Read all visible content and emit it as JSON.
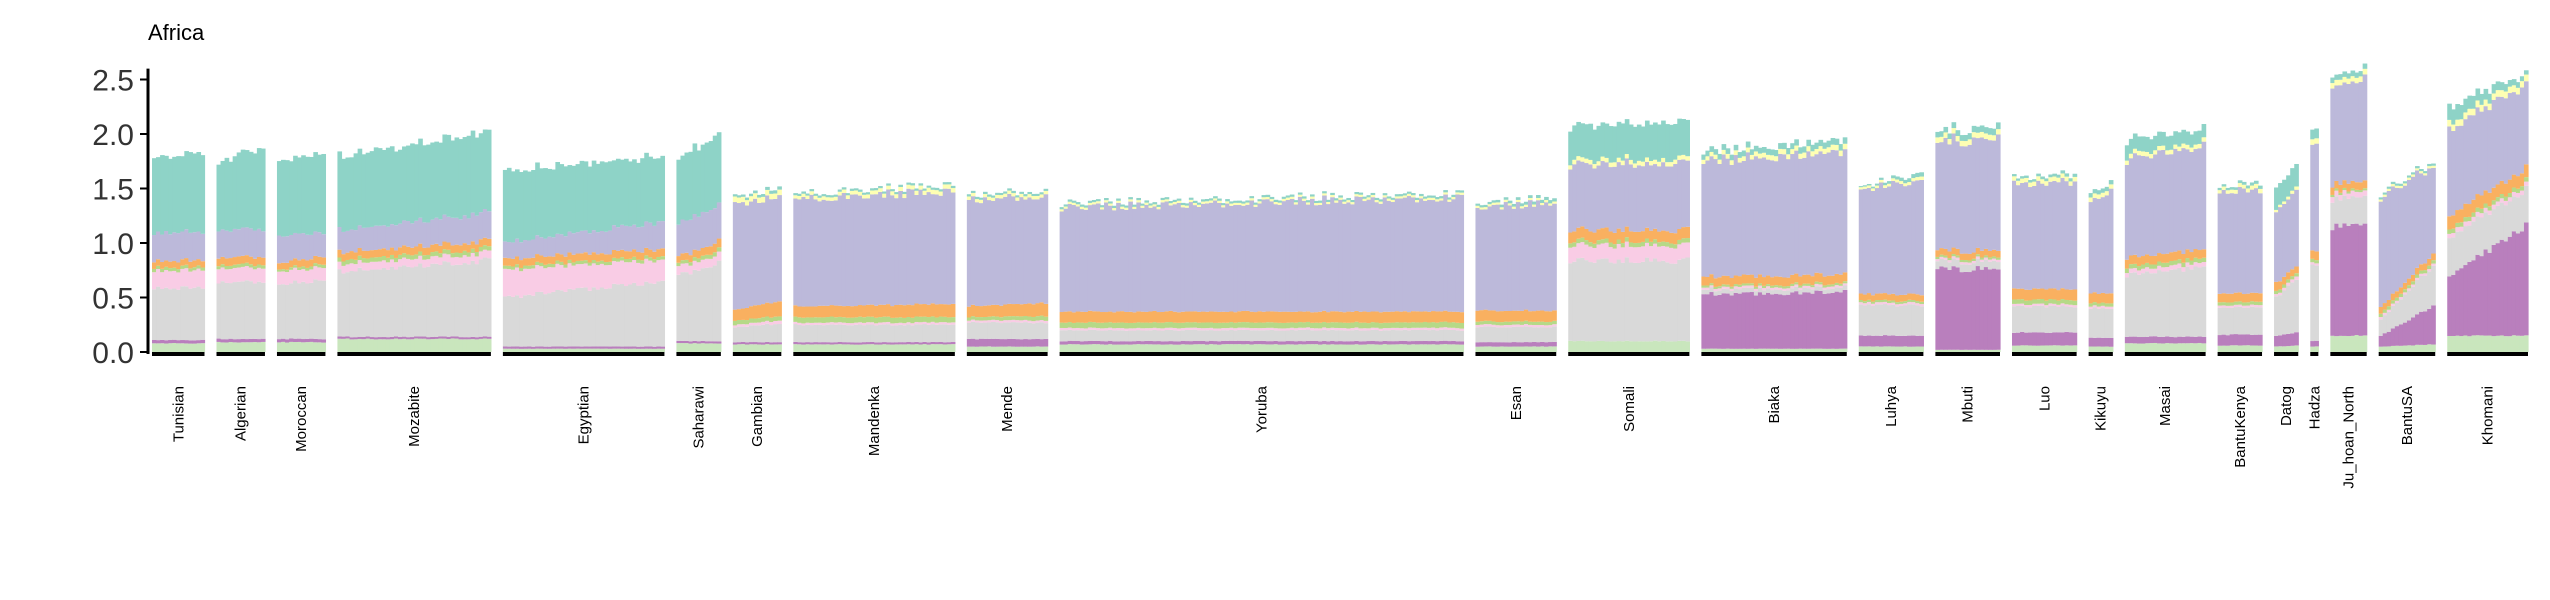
{
  "chart_data": {
    "type": "bar",
    "stacked": true,
    "title": "Africa",
    "xlabel": "",
    "ylabel": "",
    "ylim": [
      0,
      2.6
    ],
    "yticks": [
      "0.0",
      "0.5",
      "1.0",
      "1.5",
      "2.0",
      "2.5"
    ],
    "grid": false,
    "legend": "none",
    "component_colors": [
      "#c9e6bd",
      "#b97fbd",
      "#d9d9d9",
      "#f9cce5",
      "#b6d987",
      "#f9b060",
      "#bcb9da",
      "#feffb3",
      "#8ed3c7"
    ],
    "groups": [
      {
        "label": "Tunisian",
        "n": 13,
        "start": [
          0.08,
          0.03,
          0.48,
          0.16,
          0.03,
          0.06,
          0.26,
          0.0,
          0.7
        ],
        "end": [
          0.08,
          0.03,
          0.48,
          0.16,
          0.03,
          0.06,
          0.26,
          0.0,
          0.72
        ]
      },
      {
        "label": "Algerian",
        "n": 12,
        "start": [
          0.09,
          0.03,
          0.52,
          0.13,
          0.03,
          0.07,
          0.25,
          0.0,
          0.62
        ],
        "end": [
          0.09,
          0.03,
          0.52,
          0.13,
          0.03,
          0.07,
          0.25,
          0.0,
          0.76
        ]
      },
      {
        "label": "Moroccan",
        "n": 12,
        "start": [
          0.09,
          0.03,
          0.5,
          0.12,
          0.02,
          0.06,
          0.25,
          0.0,
          0.68
        ],
        "end": [
          0.09,
          0.03,
          0.54,
          0.12,
          0.03,
          0.07,
          0.22,
          0.0,
          0.74
        ]
      },
      {
        "label": "Mozabite",
        "n": 38,
        "start": [
          0.12,
          0.02,
          0.6,
          0.07,
          0.04,
          0.07,
          0.2,
          0.0,
          0.68
        ],
        "end": [
          0.12,
          0.02,
          0.7,
          0.07,
          0.04,
          0.07,
          0.26,
          0.0,
          0.74
        ]
      },
      {
        "label": "Egyptian",
        "n": 40,
        "start": [
          0.03,
          0.02,
          0.45,
          0.25,
          0.03,
          0.07,
          0.15,
          0.0,
          0.66
        ],
        "end": [
          0.03,
          0.02,
          0.6,
          0.2,
          0.03,
          0.07,
          0.25,
          0.0,
          0.6
        ]
      },
      {
        "label": "Saharawi",
        "n": 11,
        "start": [
          0.08,
          0.02,
          0.6,
          0.08,
          0.03,
          0.06,
          0.3,
          0.0,
          0.6
        ],
        "end": [
          0.08,
          0.02,
          0.72,
          0.08,
          0.04,
          0.08,
          0.34,
          0.0,
          0.66
        ]
      },
      {
        "label": "Gambian",
        "n": 12,
        "start": [
          0.07,
          0.02,
          0.14,
          0.02,
          0.04,
          0.1,
          0.95,
          0.05,
          0.02
        ],
        "end": [
          0.07,
          0.02,
          0.17,
          0.03,
          0.04,
          0.14,
          0.98,
          0.05,
          0.03
        ]
      },
      {
        "label": "Mandenka",
        "n": 40,
        "start": [
          0.07,
          0.02,
          0.16,
          0.02,
          0.05,
          0.1,
          0.98,
          0.03,
          0.02
        ],
        "end": [
          0.07,
          0.02,
          0.16,
          0.02,
          0.05,
          0.12,
          1.04,
          0.04,
          0.02
        ]
      },
      {
        "label": "Mende",
        "n": 20,
        "start": [
          0.05,
          0.07,
          0.15,
          0.02,
          0.03,
          0.1,
          0.98,
          0.03,
          0.02
        ],
        "end": [
          0.05,
          0.07,
          0.15,
          0.02,
          0.04,
          0.12,
          0.99,
          0.03,
          0.02
        ]
      },
      {
        "label": "Yoruba",
        "n": 100,
        "start": [
          0.07,
          0.03,
          0.1,
          0.02,
          0.05,
          0.1,
          0.96,
          0.02,
          0.02
        ],
        "end": [
          0.07,
          0.03,
          0.1,
          0.02,
          0.05,
          0.1,
          1.05,
          0.02,
          0.02
        ]
      },
      {
        "label": "Esan",
        "n": 20,
        "start": [
          0.05,
          0.04,
          0.14,
          0.02,
          0.03,
          0.1,
          0.94,
          0.02,
          0.02
        ],
        "end": [
          0.05,
          0.04,
          0.14,
          0.02,
          0.03,
          0.1,
          1.0,
          0.02,
          0.03
        ]
      },
      {
        "label": "Somali",
        "n": 30,
        "start": [
          0.1,
          0.0,
          0.74,
          0.14,
          0.04,
          0.1,
          0.6,
          0.04,
          0.32
        ],
        "end": [
          0.1,
          0.0,
          0.74,
          0.14,
          0.04,
          0.1,
          0.62,
          0.04,
          0.34
        ]
      },
      {
        "label": "Biaka",
        "n": 36,
        "start": [
          0.03,
          0.5,
          0.04,
          0.02,
          0.02,
          0.08,
          1.06,
          0.04,
          0.05
        ],
        "end": [
          0.03,
          0.52,
          0.04,
          0.02,
          0.02,
          0.08,
          1.13,
          0.05,
          0.06
        ]
      },
      {
        "label": "Luhya",
        "n": 16,
        "start": [
          0.05,
          0.1,
          0.28,
          0.02,
          0.02,
          0.06,
          0.98,
          0.02,
          0.01
        ],
        "end": [
          0.05,
          0.1,
          0.28,
          0.02,
          0.02,
          0.06,
          1.03,
          0.03,
          0.04
        ]
      },
      {
        "label": "Mbuti",
        "n": 16,
        "start": [
          0.02,
          0.74,
          0.07,
          0.02,
          0.02,
          0.06,
          1.01,
          0.05,
          0.05
        ],
        "end": [
          0.02,
          0.74,
          0.07,
          0.02,
          0.02,
          0.06,
          1.04,
          0.05,
          0.06
        ]
      },
      {
        "label": "Luo",
        "n": 16,
        "start": [
          0.06,
          0.12,
          0.24,
          0.02,
          0.04,
          0.1,
          0.96,
          0.04,
          0.02
        ],
        "end": [
          0.06,
          0.12,
          0.24,
          0.02,
          0.04,
          0.1,
          0.99,
          0.04,
          0.03
        ]
      },
      {
        "label": "Kikuyu",
        "n": 6,
        "start": [
          0.05,
          0.08,
          0.27,
          0.02,
          0.03,
          0.09,
          0.86,
          0.04,
          0.04
        ],
        "end": [
          0.05,
          0.08,
          0.27,
          0.02,
          0.03,
          0.09,
          0.94,
          0.04,
          0.04
        ]
      },
      {
        "label": "Masai",
        "n": 20,
        "start": [
          0.08,
          0.06,
          0.56,
          0.04,
          0.04,
          0.08,
          0.9,
          0.04,
          0.14
        ],
        "end": [
          0.08,
          0.06,
          0.64,
          0.04,
          0.04,
          0.08,
          0.96,
          0.04,
          0.12
        ]
      },
      {
        "label": "BantuKenya",
        "n": 11,
        "start": [
          0.06,
          0.1,
          0.25,
          0.02,
          0.03,
          0.08,
          0.94,
          0.03,
          0.02
        ],
        "end": [
          0.06,
          0.1,
          0.25,
          0.02,
          0.03,
          0.08,
          0.94,
          0.04,
          0.03
        ]
      },
      {
        "label": "Datog",
        "n": 6,
        "start": [
          0.05,
          0.1,
          0.35,
          0.02,
          0.03,
          0.08,
          0.66,
          0.02,
          0.2
        ],
        "end": [
          0.06,
          0.12,
          0.5,
          0.03,
          0.03,
          0.06,
          0.7,
          0.03,
          0.2
        ]
      },
      {
        "label": "Hadza",
        "n": 2,
        "start": [
          0.05,
          0.05,
          0.7,
          0.02,
          0.03,
          0.08,
          0.96,
          0.05,
          0.09
        ],
        "end": [
          0.05,
          0.05,
          0.7,
          0.02,
          0.03,
          0.08,
          0.96,
          0.05,
          0.09
        ]
      },
      {
        "label": "Ju_hoan_North",
        "n": 9,
        "start": [
          0.15,
          1.0,
          0.25,
          0.05,
          0.02,
          0.07,
          0.9,
          0.05,
          0.05
        ],
        "end": [
          0.15,
          1.0,
          0.25,
          0.05,
          0.02,
          0.07,
          0.95,
          0.05,
          0.05
        ]
      },
      {
        "label": "BantuSA",
        "n": 14,
        "start": [
          0.05,
          0.1,
          0.15,
          0.02,
          0.03,
          0.06,
          1.0,
          0.02,
          0.02
        ],
        "end": [
          0.07,
          0.35,
          0.37,
          0.02,
          0.03,
          0.06,
          0.81,
          0.02,
          0.02
        ]
      },
      {
        "label": "Khomani",
        "n": 20,
        "start": [
          0.15,
          0.55,
          0.35,
          0.04,
          0.04,
          0.12,
          0.8,
          0.06,
          0.15
        ],
        "end": [
          0.15,
          1.0,
          0.33,
          0.04,
          0.04,
          0.12,
          0.77,
          0.06,
          0.04
        ]
      }
    ]
  }
}
